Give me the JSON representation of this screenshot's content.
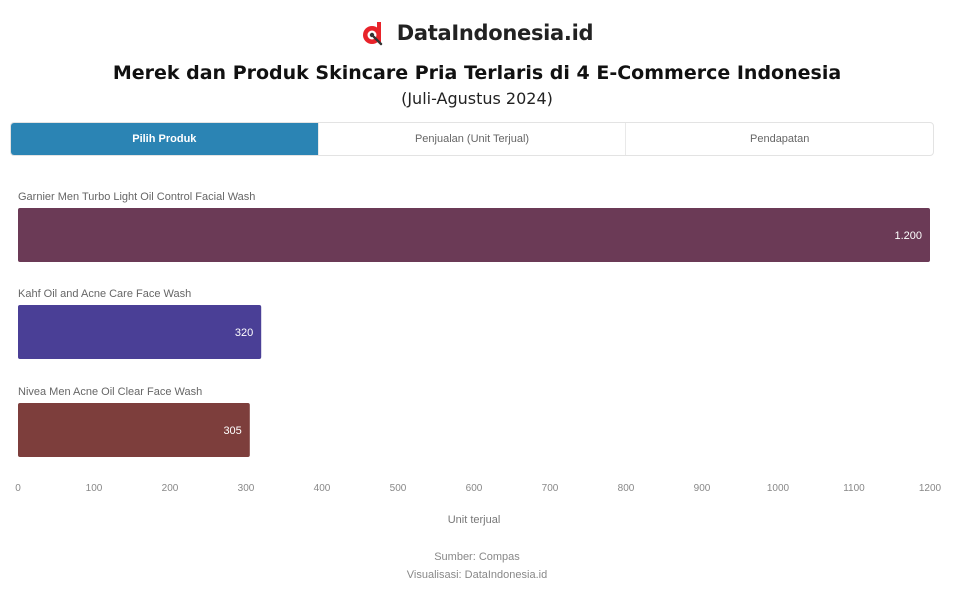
{
  "brand": {
    "name": "DataIndonesia.id",
    "logo_color": "#e8232a"
  },
  "title": "Merek dan Produk Skincare Pria Terlaris di 4 E-Commerce Indonesia",
  "subtitle": "(Juli-Agustus 2024)",
  "tabs": [
    {
      "label": "Pilih Produk",
      "active": true
    },
    {
      "label": "Penjualan (Unit Terjual)",
      "active": false
    },
    {
      "label": "Pendapatan",
      "active": false
    }
  ],
  "chart_data": {
    "type": "bar",
    "orientation": "horizontal",
    "categories": [
      "Garnier Men Turbo Light Oil Control Facial Wash",
      "Kahf Oil and Acne Care Face Wash",
      "Nivea Men Acne Oil Clear Face Wash"
    ],
    "values": [
      1200,
      320,
      305
    ],
    "value_labels": [
      "1.200",
      "320",
      "305"
    ],
    "colors": [
      "#6b3a56",
      "#4a3f96",
      "#7d3e3c"
    ],
    "xlabel": "Unit terjual",
    "xlim": [
      0,
      1200
    ],
    "xticks": [
      "0",
      "100",
      "200",
      "300",
      "400",
      "500",
      "600",
      "700",
      "800",
      "900",
      "1000",
      "1100",
      "1200"
    ],
    "grid": false
  },
  "footer": {
    "source": "Sumber: Compas",
    "credit": "Visualisasi: DataIndonesia.id"
  }
}
